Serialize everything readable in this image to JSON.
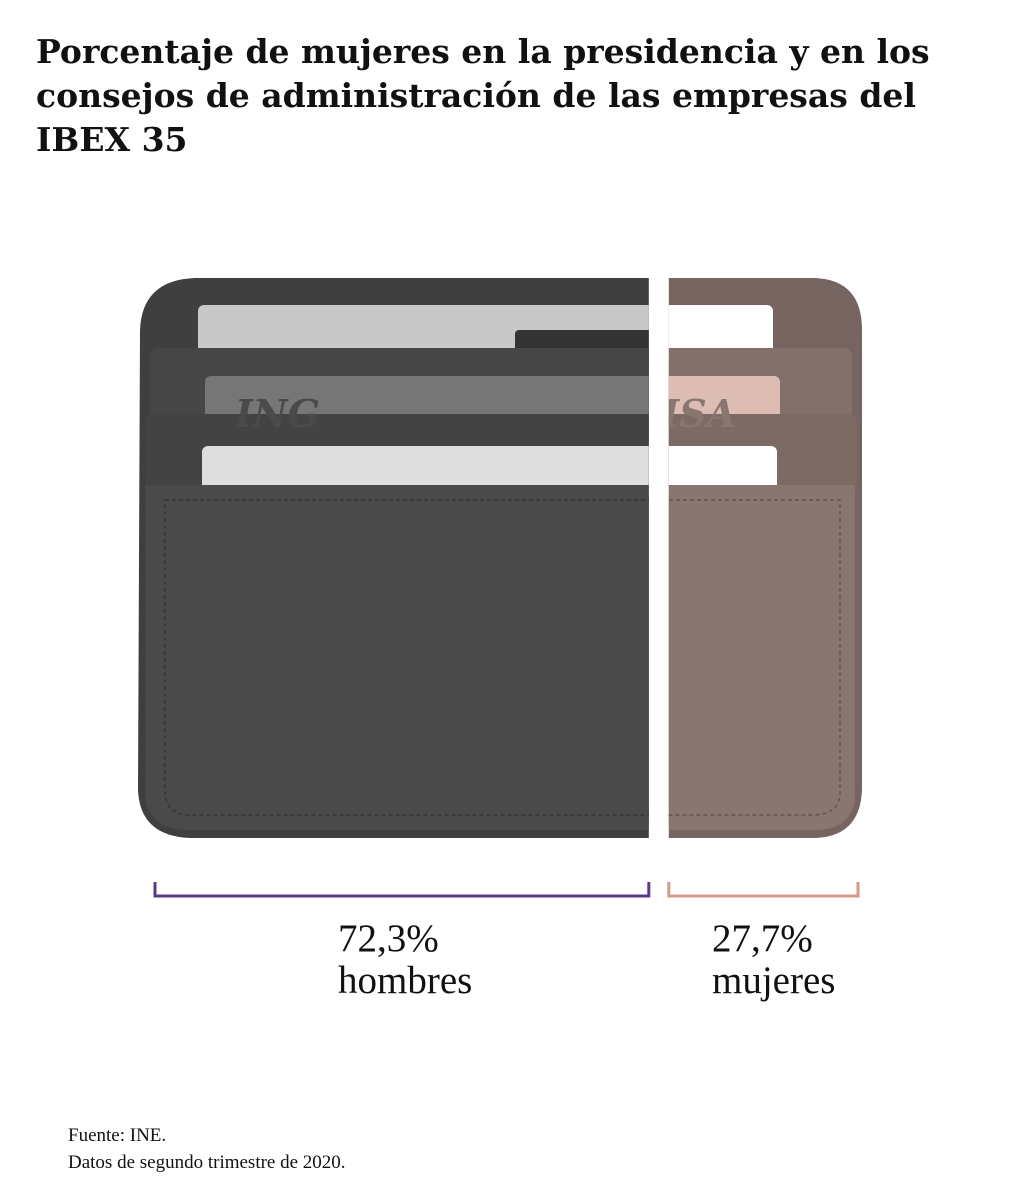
{
  "title": "Porcentaje de mujeres en la presidencia y en los consejos de administración de las empresas del IBEX 35",
  "chart_data": {
    "type": "bar",
    "orientation": "horizontal-stacked",
    "categories": [
      "hombres",
      "mujeres"
    ],
    "values": [
      72.3,
      27.7
    ],
    "value_labels": [
      "72,3%",
      "27,7%"
    ],
    "unit": "%",
    "total": 100,
    "colors": {
      "hombres": "#5b3a8c",
      "mujeres": "#d59a86"
    },
    "wallet_colors": {
      "hombres": "#4a4a4a",
      "mujeres": "#8a7670"
    }
  },
  "labels": {
    "hombres_pct": "72,3%",
    "hombres_text": "hombres",
    "mujeres_pct": "27,7%",
    "mujeres_text": "mujeres"
  },
  "card_texts": {
    "bank": "ING",
    "brand": "VISA"
  },
  "source": {
    "line1": "Fuente: INE.",
    "line2": "Datos de segundo trimestre de 2020."
  }
}
